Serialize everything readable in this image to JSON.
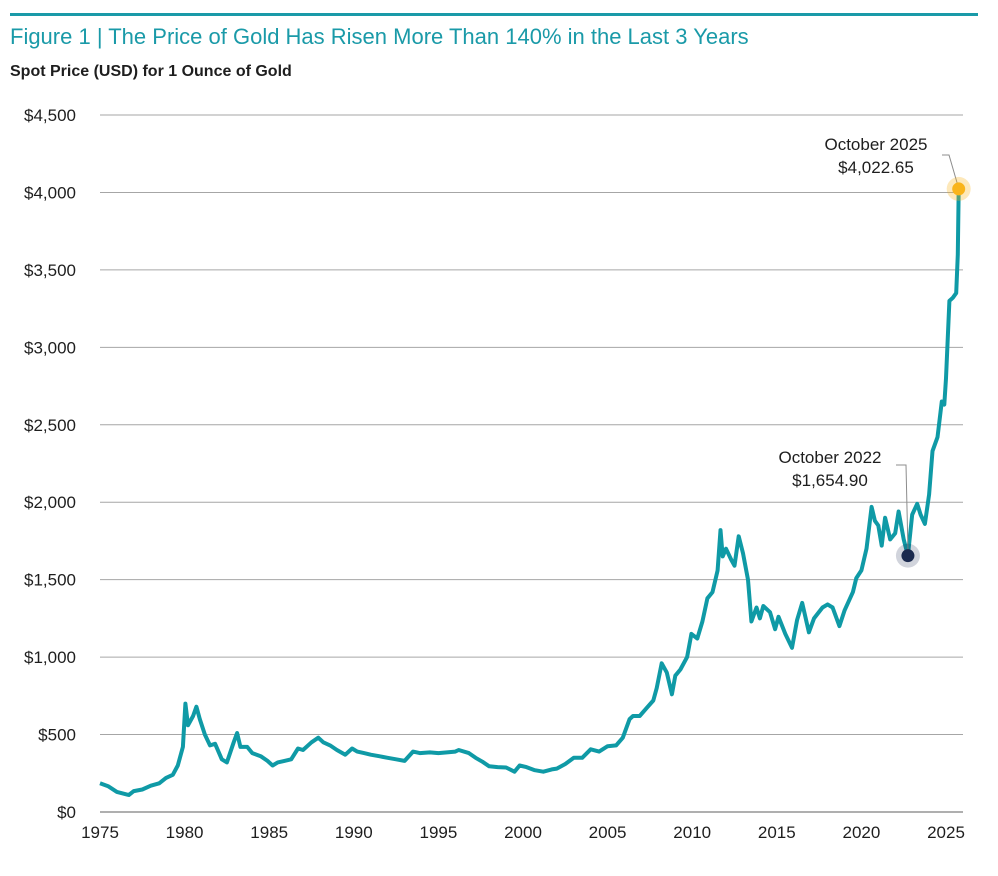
{
  "title": "Figure 1 | The Price of Gold Has Risen More Than 140% in the Last 3 Years",
  "subtitle": "Spot Price (USD) for 1 Ounce of Gold",
  "colors": {
    "accent": "#1a9aa8",
    "line": "#0f9aa6",
    "highlight_end": "#f9b41b",
    "highlight_start": "#1b2a4e",
    "grid": "#a6a6a6"
  },
  "chart_data": {
    "type": "line",
    "title": "Figure 1 | The Price of Gold Has Risen More Than 140% in the Last 3 Years",
    "ylabel": "Spot Price (USD) for 1 Ounce of Gold",
    "xlabel": "",
    "xlim": [
      1975,
      2025.9
    ],
    "ylim": [
      0,
      4500
    ],
    "grid": true,
    "x_ticks": [
      "1975",
      "1980",
      "1985",
      "1990",
      "1995",
      "2000",
      "2005",
      "2010",
      "2015",
      "2020",
      "2025"
    ],
    "y_ticks": [
      "$0",
      "$500",
      "$1,000",
      "$1,500",
      "$2,000",
      "$2,500",
      "$3,000",
      "$3,500",
      "$4,000",
      "$4,500"
    ],
    "series": [
      {
        "x": [
          1975.0,
          1975.5,
          1976.0,
          1976.7,
          1977.0,
          1977.5,
          1978.0,
          1978.5,
          1978.9,
          1979.3,
          1979.6,
          1979.9,
          1980.05,
          1980.2,
          1980.5,
          1980.7,
          1980.9,
          1981.2,
          1981.5,
          1981.8,
          1982.2,
          1982.5,
          1982.9,
          1983.1,
          1983.3,
          1983.7,
          1984.0,
          1984.5,
          1984.9,
          1985.2,
          1985.5,
          1985.9,
          1986.3,
          1986.7,
          1987.0,
          1987.5,
          1987.9,
          1988.2,
          1988.6,
          1989.0,
          1989.5,
          1989.9,
          1990.2,
          1990.6,
          1991.0,
          1991.5,
          1992.0,
          1992.5,
          1993.0,
          1993.5,
          1993.9,
          1994.5,
          1995.0,
          1995.5,
          1996.0,
          1996.2,
          1996.8,
          1997.2,
          1997.6,
          1998.0,
          1998.5,
          1999.0,
          1999.5,
          1999.8,
          2000.2,
          2000.7,
          2001.2,
          2001.7,
          2002.0,
          2002.5,
          2003.0,
          2003.5,
          2004.0,
          2004.5,
          2005.0,
          2005.5,
          2005.9,
          2006.3,
          2006.5,
          2006.9,
          2007.3,
          2007.7,
          2007.9,
          2008.2,
          2008.5,
          2008.8,
          2009.0,
          2009.3,
          2009.7,
          2009.95,
          2010.3,
          2010.6,
          2010.9,
          2011.2,
          2011.5,
          2011.67,
          2011.8,
          2012.0,
          2012.3,
          2012.5,
          2012.75,
          2013.0,
          2013.3,
          2013.5,
          2013.8,
          2014.0,
          2014.2,
          2014.6,
          2014.9,
          2015.1,
          2015.5,
          2015.9,
          2016.2,
          2016.5,
          2016.9,
          2017.2,
          2017.7,
          2018.0,
          2018.3,
          2018.7,
          2019.0,
          2019.5,
          2019.7,
          2020.0,
          2020.3,
          2020.6,
          2020.8,
          2021.0,
          2021.2,
          2021.4,
          2021.7,
          2022.0,
          2022.2,
          2022.5,
          2022.75,
          2023.0,
          2023.3,
          2023.5,
          2023.75,
          2024.0,
          2024.2,
          2024.5,
          2024.75,
          2024.9,
          2025.0,
          2025.2,
          2025.4,
          2025.6,
          2025.7,
          2025.75
        ],
        "y": [
          185,
          165,
          130,
          110,
          135,
          145,
          170,
          185,
          220,
          240,
          300,
          420,
          700,
          560,
          620,
          680,
          600,
          500,
          430,
          440,
          340,
          320,
          450,
          510,
          420,
          420,
          380,
          360,
          330,
          300,
          320,
          330,
          340,
          410,
          400,
          450,
          480,
          450,
          430,
          400,
          370,
          410,
          390,
          380,
          370,
          360,
          350,
          340,
          330,
          390,
          380,
          385,
          380,
          385,
          390,
          400,
          380,
          350,
          325,
          295,
          290,
          287,
          260,
          300,
          290,
          270,
          260,
          275,
          280,
          310,
          350,
          350,
          405,
          390,
          425,
          430,
          480,
          600,
          620,
          620,
          670,
          720,
          800,
          960,
          900,
          760,
          880,
          920,
          1000,
          1150,
          1120,
          1230,
          1380,
          1420,
          1560,
          1820,
          1650,
          1700,
          1630,
          1590,
          1780,
          1670,
          1500,
          1230,
          1320,
          1250,
          1330,
          1290,
          1180,
          1260,
          1150,
          1060,
          1240,
          1350,
          1160,
          1250,
          1320,
          1340,
          1320,
          1200,
          1300,
          1420,
          1510,
          1560,
          1700,
          1970,
          1880,
          1850,
          1720,
          1900,
          1760,
          1800,
          1940,
          1760,
          1654.9,
          1920,
          1990,
          1920,
          1860,
          2050,
          2330,
          2420,
          2650,
          2630,
          2800,
          3300,
          3320,
          3350,
          3600,
          4022.65
        ]
      }
    ],
    "annotations": [
      {
        "label": "October 2022",
        "value": "$1,654.90",
        "x": 2022.75,
        "y": 1654.9
      },
      {
        "label": "October 2025",
        "value": "$4,022.65",
        "x": 2025.75,
        "y": 4022.65
      }
    ]
  }
}
